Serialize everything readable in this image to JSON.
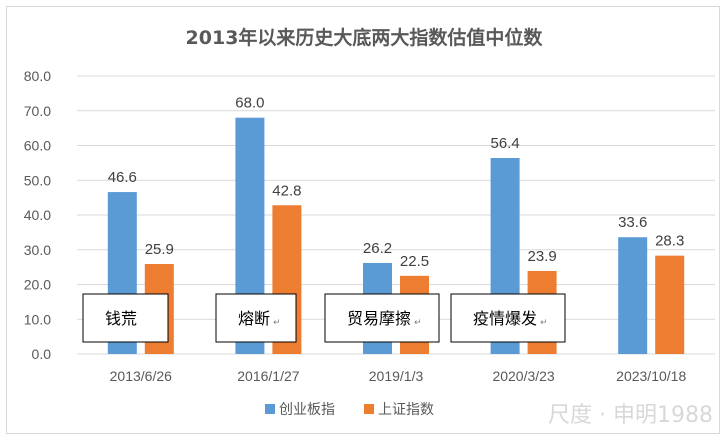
{
  "chart_data": {
    "type": "bar",
    "title": "2013年以来历史大底两大指数估值中位数",
    "categories": [
      "2013/6/26",
      "2016/1/27",
      "2019/1/3",
      "2020/3/23",
      "2023/10/18"
    ],
    "series": [
      {
        "name": "创业板指",
        "color": "#5b9bd5",
        "values": [
          46.6,
          68.0,
          26.2,
          56.4,
          33.6
        ]
      },
      {
        "name": "上证指数",
        "color": "#ed7d31",
        "values": [
          25.9,
          42.8,
          22.5,
          23.9,
          28.3
        ]
      }
    ],
    "data_labels": [
      [
        "46.6",
        "68.0",
        "26.2",
        "56.4",
        "33.6"
      ],
      [
        "25.9",
        "42.8",
        "22.5",
        "23.9",
        "28.3"
      ]
    ],
    "ylim": [
      0,
      80
    ],
    "yticks": [
      "0.0",
      "10.0",
      "20.0",
      "30.0",
      "40.0",
      "50.0",
      "60.0",
      "70.0",
      "80.0"
    ],
    "grid": true,
    "legend_position": "bottom",
    "annotations": [
      {
        "category_index": 0,
        "text": "钱荒",
        "mark": ""
      },
      {
        "category_index": 1,
        "text": "熔断",
        "mark": "↵"
      },
      {
        "category_index": 2,
        "text": "贸易摩擦",
        "mark": "↵"
      },
      {
        "category_index": 3,
        "text": "疫情爆发",
        "mark": "↵"
      }
    ]
  },
  "watermark": "尺度 · 申明1988"
}
